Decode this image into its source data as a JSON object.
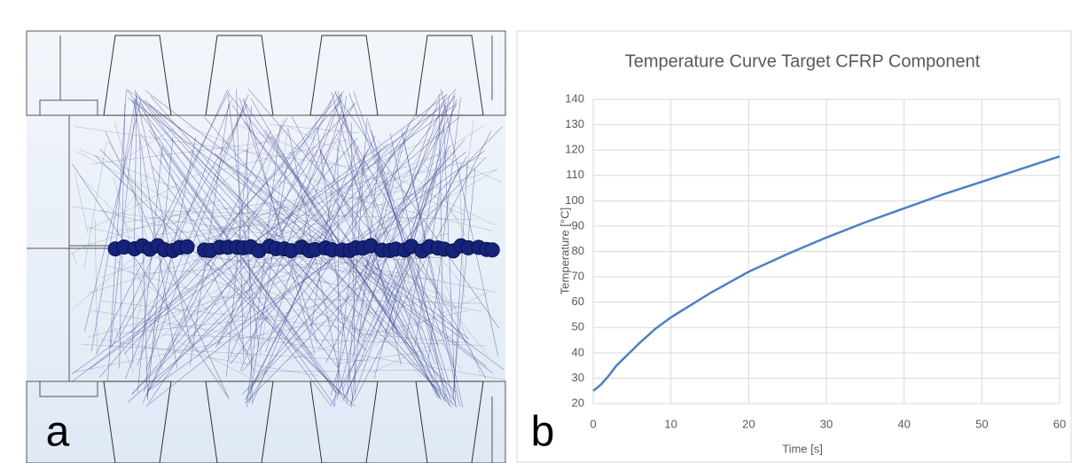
{
  "panel_labels": [
    "a",
    "b"
  ],
  "chart_data": {
    "type": "line",
    "title": "Temperature Curve Target CFRP Component",
    "xlabel": "Time [s]",
    "ylabel": "Temperature [°C]",
    "x": [
      0,
      1,
      2,
      3,
      4,
      5,
      6,
      8,
      10,
      15,
      20,
      25,
      30,
      35,
      40,
      45,
      50,
      55,
      60
    ],
    "values": [
      25,
      27.5,
      31,
      35,
      38,
      41,
      44,
      49.5,
      54,
      63.5,
      72,
      79,
      85.5,
      91.5,
      97,
      102.5,
      107.5,
      112.5,
      117.5
    ],
    "color": "#4f7fc4",
    "xlim": [
      0,
      60
    ],
    "xticks": [
      0,
      10,
      20,
      30,
      40,
      50,
      60
    ],
    "ylim": [
      20,
      140
    ],
    "yticks": [
      20,
      30,
      40,
      50,
      60,
      70,
      80,
      90,
      100,
      110,
      120,
      130,
      140
    ],
    "grid": true
  }
}
